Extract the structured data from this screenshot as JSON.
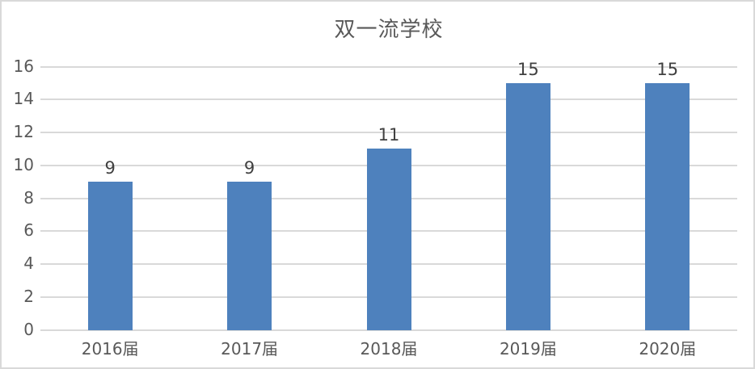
{
  "chart": {
    "colors": {
      "bar": "#4E81BD",
      "gridline": "#D9D9D9",
      "axis_line": "#D9D9D9",
      "axis_text": "#595959",
      "data_label": "#404040",
      "border": "#D9D9D9",
      "background": "#FFFFFF"
    }
  },
  "chart_data": {
    "type": "bar",
    "title": "双一流学校",
    "categories": [
      "2016届",
      "2017届",
      "2018届",
      "2019届",
      "2020届"
    ],
    "values": [
      9,
      9,
      11,
      15,
      15
    ],
    "data_labels": [
      "9",
      "9",
      "11",
      "15",
      "15"
    ],
    "y_ticks": [
      0,
      2,
      4,
      6,
      8,
      10,
      12,
      14,
      16
    ],
    "ylim": [
      0,
      16
    ],
    "xlabel": "",
    "ylabel": "",
    "grid": "horizontal",
    "legend": "none"
  }
}
